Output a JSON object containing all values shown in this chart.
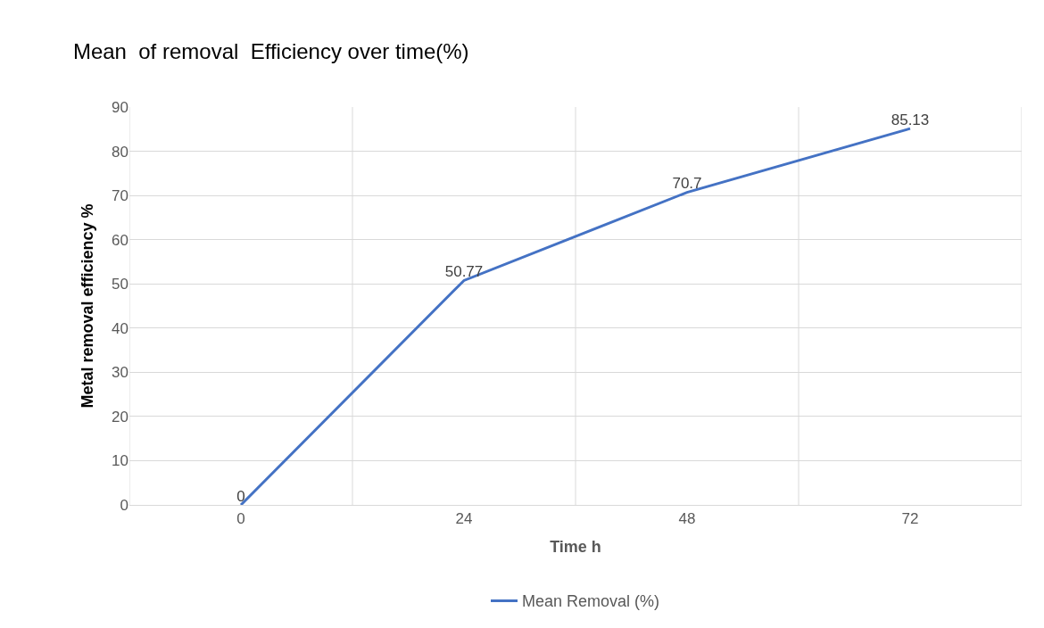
{
  "chart_data": {
    "type": "line",
    "title": "Mean  of removal  Efficiency over time(%)",
    "xlabel": "Time h",
    "ylabel": "Metal removal efficiency %",
    "categories": [
      "0",
      "24",
      "48",
      "72"
    ],
    "series": [
      {
        "name": "Mean Removal (%)",
        "color": "#4472c4",
        "values": [
          0,
          50.77,
          70.7,
          85.13
        ]
      }
    ],
    "ylim": [
      0,
      90
    ],
    "yticks": [
      0,
      10,
      20,
      30,
      40,
      50,
      60,
      70,
      80,
      90
    ],
    "grid": true,
    "legend": "bottom",
    "data_labels": true,
    "marker": "none",
    "line_style": "solid"
  }
}
